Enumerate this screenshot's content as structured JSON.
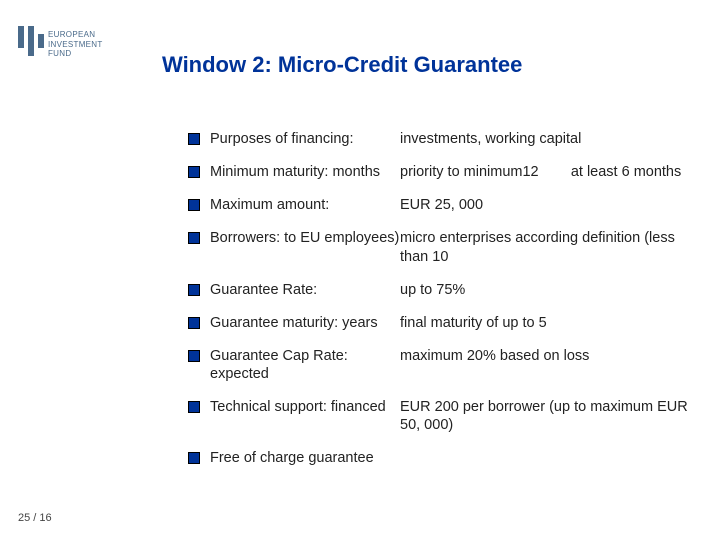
{
  "logo": {
    "line1": "EUROPEAN",
    "line2": "INVESTMENT",
    "line3": "FUND",
    "bar_color": "#4a6a8a"
  },
  "title": "Window 2: Micro-Credit Guarantee",
  "title_color": "#003399",
  "bullet_color": "#003399",
  "items": [
    {
      "left": "Purposes of financing:",
      "right": "investments, working capital"
    },
    {
      "left": "Minimum maturity: months",
      "right": "priority to minimum12        at least 6 months"
    },
    {
      "left": "Maximum amount:",
      "right": "EUR 25, 000"
    },
    {
      "left": "Borrowers: to EU employees)",
      "right": "micro enterprises according definition (less than 10"
    },
    {
      "left": "Guarantee Rate:",
      "right": "up to 75%"
    },
    {
      "left": "Guarantee maturity: years",
      "right": "final maturity of up to 5"
    },
    {
      "left": "Guarantee Cap Rate: expected",
      "right": "maximum 20% based on loss"
    },
    {
      "left": "Technical support: financed",
      "right": "EUR 200 per borrower (up to maximum EUR 50, 000)"
    },
    {
      "left": "Free of charge guarantee",
      "right": ""
    }
  ],
  "page_number": "25 / 16",
  "fonts": {
    "title_size": 22,
    "body_size": 14.5,
    "page_num_size": 11
  }
}
